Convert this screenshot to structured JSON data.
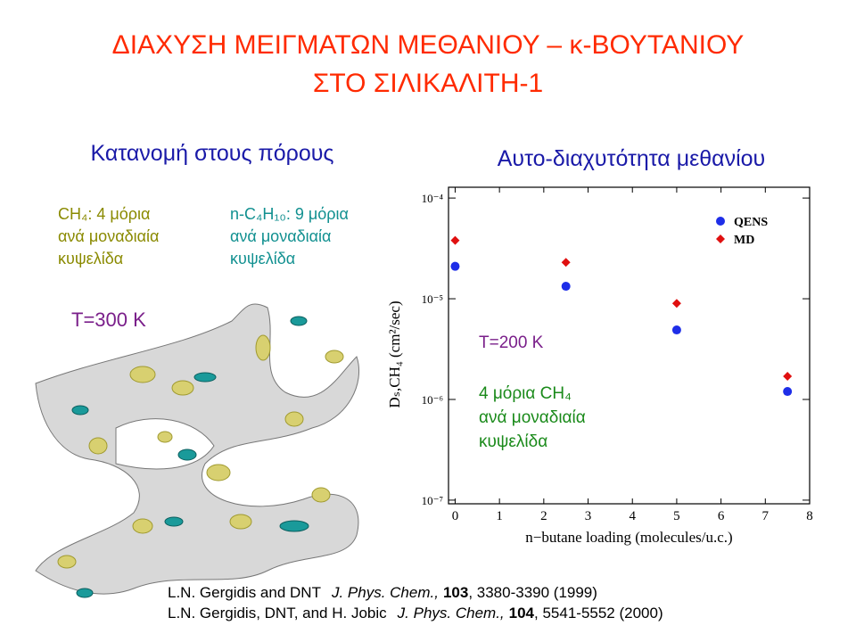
{
  "title_lines": [
    "ΔΙΑΧΥΣΗ  ΜΕΙΓΜΑΤΩΝ  ΜΕΘΑΝΙΟΥ – κ-ΒΟΥΤΑΝΙΟΥ",
    "ΣΤΟ  ΣΙΛΙΚΑΛΙΤΗ-1"
  ],
  "left": {
    "heading": "Κατανομή στους πόρους",
    "methane": [
      "CH₄:  4 μόρια",
      "ανά μοναδιαία",
      "κυψελίδα"
    ],
    "butane": [
      "n-C₄H₁₀: 9 μόρια",
      "ανά μοναδιαία",
      "κυψελίδα"
    ],
    "temperature": "T=300 K"
  },
  "right_heading": "Αυτο-διαχυτότητα μεθανίου",
  "chart_data": {
    "type": "scatter",
    "log_y": true,
    "x_label": "n−butane loading (molecules/u.c.)",
    "y_label": "Dₛ,CH₄ (cm²/sec)",
    "xlim": [
      -0.15,
      8
    ],
    "xticks": [
      0,
      1,
      2,
      3,
      4,
      5,
      6,
      7,
      8
    ],
    "ylim": [
      9.2e-08,
      0.000128
    ],
    "yticks": [
      {
        "value": 1e-07,
        "label": "10⁻⁷"
      },
      {
        "value": 1e-06,
        "label": "10⁻⁶"
      },
      {
        "value": 1e-05,
        "label": "10⁻⁵"
      },
      {
        "value": 0.0001,
        "label": "10⁻⁴"
      }
    ],
    "legend": "top-right",
    "series": [
      {
        "name": "QENS",
        "color": "#1e2ee8",
        "marker": "circle",
        "x": [
          0,
          2.5,
          5,
          7.5
        ],
        "values": [
          2.1e-05,
          1.33e-05,
          4.9e-06,
          1.2e-06
        ]
      },
      {
        "name": "MD",
        "color": "#e01010",
        "marker": "diamond",
        "x": [
          0,
          2.5,
          5,
          7.5
        ],
        "values": [
          3.8e-05,
          2.3e-05,
          9e-06,
          1.7e-06
        ]
      }
    ],
    "annotations": [
      "T=200 K",
      "4 μόρια CH₄",
      "ανά μοναδιαία",
      "κυψελίδα"
    ]
  },
  "references": [
    [
      "L.N. Gergidis and DNT",
      "J. Phys. Chem.,",
      "103",
      ", 3380-3390 (1999)"
    ],
    [
      "L.N. Gergidis, DNT, and H. Jobic",
      "J. Phys. Chem.,",
      "104",
      ", 5541-5552 (2000)"
    ]
  ]
}
